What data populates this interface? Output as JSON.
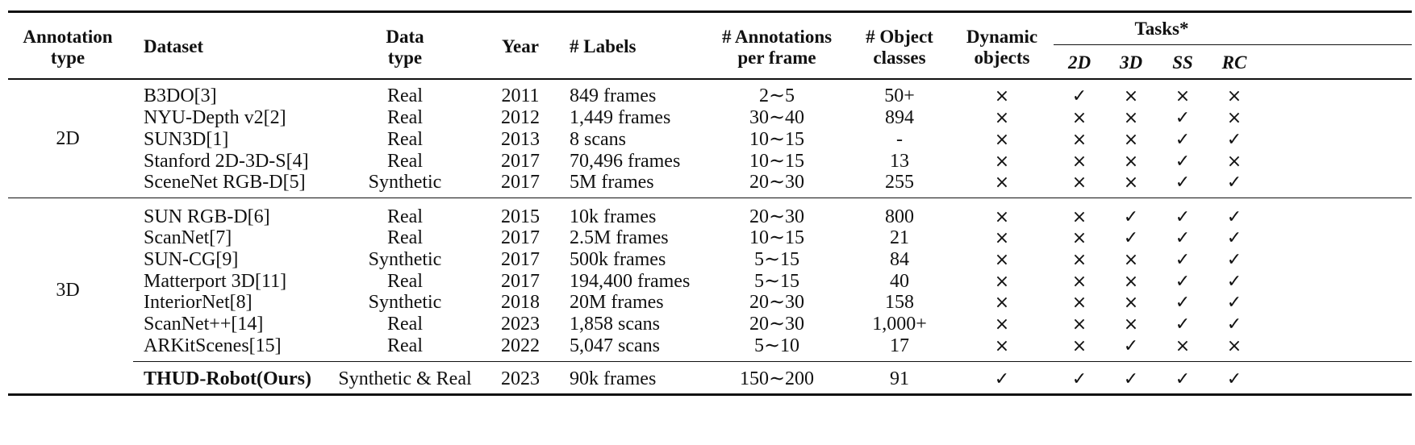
{
  "header": {
    "annotation_type": [
      "Annotation",
      "type"
    ],
    "dataset": "Dataset",
    "data_type": [
      "Data",
      "type"
    ],
    "year": "Year",
    "labels": "# Labels",
    "annotations": [
      "# Annotations",
      "per frame"
    ],
    "object_classes": [
      "# Object",
      "classes"
    ],
    "dynamic": [
      "Dynamic",
      "objects"
    ],
    "tasks": "Tasks*",
    "task_cols": [
      "2D",
      "3D",
      "SS",
      "RC"
    ]
  },
  "groups": [
    {
      "label": "2D",
      "rows": [
        {
          "dataset": "B3DO[3]",
          "data_type": "Real",
          "year": "2011",
          "labels": "849 frames",
          "annotations": "2∼5",
          "classes": "50+",
          "dynamic": "×",
          "tasks": [
            "✓",
            "×",
            "×",
            "×"
          ]
        },
        {
          "dataset": "NYU-Depth v2[2]",
          "data_type": "Real",
          "year": "2012",
          "labels": "1,449 frames",
          "annotations": "30∼40",
          "classes": "894",
          "dynamic": "×",
          "tasks": [
            "×",
            "×",
            "✓",
            "×"
          ]
        },
        {
          "dataset": "SUN3D[1]",
          "data_type": "Real",
          "year": "2013",
          "labels": "8 scans",
          "annotations": "10∼15",
          "classes": "-",
          "dynamic": "×",
          "tasks": [
            "×",
            "×",
            "✓",
            "✓"
          ]
        },
        {
          "dataset": "Stanford 2D-3D-S[4]",
          "data_type": "Real",
          "year": "2017",
          "labels": "70,496 frames",
          "annotations": "10∼15",
          "classes": "13",
          "dynamic": "×",
          "tasks": [
            "×",
            "×",
            "✓",
            "×"
          ]
        },
        {
          "dataset": "SceneNet RGB-D[5]",
          "data_type": "Synthetic",
          "year": "2017",
          "labels": "5M frames",
          "annotations": "20∼30",
          "classes": "255",
          "dynamic": "×",
          "tasks": [
            "×",
            "×",
            "✓",
            "✓"
          ]
        }
      ]
    },
    {
      "label": "3D",
      "rows": [
        {
          "dataset": "SUN RGB-D[6]",
          "data_type": "Real",
          "year": "2015",
          "labels": "10k frames",
          "annotations": "20∼30",
          "classes": "800",
          "dynamic": "×",
          "tasks": [
            "×",
            "✓",
            "✓",
            "✓"
          ]
        },
        {
          "dataset": "ScanNet[7]",
          "data_type": "Real",
          "year": "2017",
          "labels": "2.5M frames",
          "annotations": "10∼15",
          "classes": "21",
          "dynamic": "×",
          "tasks": [
            "×",
            "✓",
            "✓",
            "✓"
          ]
        },
        {
          "dataset": "SUN-CG[9]",
          "data_type": "Synthetic",
          "year": "2017",
          "labels": "500k frames",
          "annotations": "5∼15",
          "classes": "84",
          "dynamic": "×",
          "tasks": [
            "×",
            "×",
            "✓",
            "✓"
          ]
        },
        {
          "dataset": "Matterport 3D[11]",
          "data_type": "Real",
          "year": "2017",
          "labels": "194,400 frames",
          "annotations": "5∼15",
          "classes": "40",
          "dynamic": "×",
          "tasks": [
            "×",
            "×",
            "✓",
            "✓"
          ]
        },
        {
          "dataset": "InteriorNet[8]",
          "data_type": "Synthetic",
          "year": "2018",
          "labels": "20M frames",
          "annotations": "20∼30",
          "classes": "158",
          "dynamic": "×",
          "tasks": [
            "×",
            "×",
            "✓",
            "✓"
          ]
        },
        {
          "dataset": "ScanNet++[14]",
          "data_type": "Real",
          "year": "2023",
          "labels": "1,858 scans",
          "annotations": "20∼30",
          "classes": "1,000+",
          "dynamic": "×",
          "tasks": [
            "×",
            "×",
            "✓",
            "✓"
          ]
        },
        {
          "dataset": "ARKitScenes[15]",
          "data_type": "Real",
          "year": "2022",
          "labels": "5,047 scans",
          "annotations": "5∼10",
          "classes": "17",
          "dynamic": "×",
          "tasks": [
            "×",
            "✓",
            "×",
            "×"
          ]
        }
      ]
    }
  ],
  "ours": {
    "dataset": "THUD-Robot(Ours)",
    "data_type": "Synthetic & Real",
    "year": "2023",
    "labels": "90k frames",
    "annotations": "150∼200",
    "classes": "91",
    "dynamic": "✓",
    "tasks": [
      "✓",
      "✓",
      "✓",
      "✓"
    ]
  }
}
